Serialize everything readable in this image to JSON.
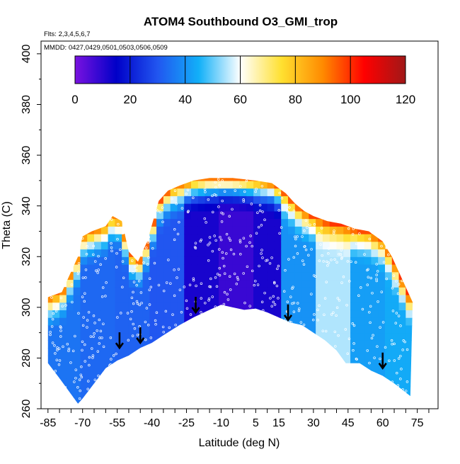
{
  "chart_data": {
    "type": "heatmap",
    "title": "ATOM4 Southbound O3_GMI_trop",
    "annotations": {
      "flights": "Flts: 2,3,4,5,6,7",
      "dates": "MMDD: 0427,0429,0501,0503,0506,0509"
    },
    "xlabel": "Latitude (deg N)",
    "ylabel": "Theta (C)",
    "xlim": [
      -88,
      84
    ],
    "ylim": [
      260,
      405
    ],
    "x_ticks": [
      -85,
      -70,
      -55,
      -40,
      -25,
      -10,
      5,
      15,
      30,
      45,
      60,
      75
    ],
    "y_ticks": [
      260,
      280,
      300,
      320,
      340,
      360,
      380,
      400
    ],
    "colorbar": {
      "min": 0,
      "max": 120,
      "ticks": [
        0,
        20,
        40,
        60,
        80,
        100,
        120
      ],
      "colors": [
        "#7a12e0",
        "#0000c8",
        "#2156f0",
        "#12b0f8",
        "#ffffff",
        "#ffe030",
        "#ff8a00",
        "#ff0000",
        "#a01818"
      ]
    },
    "surface_boundary": [
      [
        -85,
        278
      ],
      [
        -80,
        272
      ],
      [
        -72,
        262
      ],
      [
        -70,
        264
      ],
      [
        -65,
        270
      ],
      [
        -60,
        276
      ],
      [
        -55,
        279
      ],
      [
        -50,
        281
      ],
      [
        -45,
        284
      ],
      [
        -40,
        286
      ],
      [
        -35,
        289
      ],
      [
        -28,
        293
      ],
      [
        -22,
        296
      ],
      [
        -15,
        299
      ],
      [
        -10,
        301
      ],
      [
        -5,
        300
      ],
      [
        0,
        299
      ],
      [
        5,
        299.5
      ],
      [
        10,
        298
      ],
      [
        15,
        296
      ],
      [
        20,
        294
      ],
      [
        25,
        293
      ],
      [
        30,
        290
      ],
      [
        35,
        287
      ],
      [
        40,
        283
      ],
      [
        44,
        278
      ],
      [
        50,
        278
      ],
      [
        55,
        275
      ],
      [
        60,
        273
      ],
      [
        65,
        270
      ],
      [
        72,
        265
      ]
    ],
    "top_boundary": [
      [
        -85,
        304
      ],
      [
        -79,
        306
      ],
      [
        -76,
        312
      ],
      [
        -72,
        320
      ],
      [
        -70,
        328
      ],
      [
        -66,
        330
      ],
      [
        -60,
        332
      ],
      [
        -57,
        336
      ],
      [
        -53,
        334
      ],
      [
        -50,
        322
      ],
      [
        -46,
        318
      ],
      [
        -42,
        326
      ],
      [
        -37,
        342
      ],
      [
        -33,
        346
      ],
      [
        -28,
        348
      ],
      [
        -22,
        350
      ],
      [
        -15,
        351
      ],
      [
        -5,
        351
      ],
      [
        5,
        350
      ],
      [
        12,
        349
      ],
      [
        18,
        345
      ],
      [
        22,
        341
      ],
      [
        26,
        338
      ],
      [
        30,
        336
      ],
      [
        36,
        334
      ],
      [
        42,
        333
      ],
      [
        48,
        331
      ],
      [
        54,
        330
      ],
      [
        60,
        326
      ],
      [
        64,
        320
      ],
      [
        68,
        312
      ],
      [
        71,
        306
      ],
      [
        73,
        302
      ]
    ],
    "field_bands": [
      {
        "x_range": [
          -85,
          -70
        ],
        "value": 35
      },
      {
        "x_range": [
          -70,
          -55
        ],
        "value": 33
      },
      {
        "x_range": [
          -55,
          -40
        ],
        "value": 32
      },
      {
        "x_range": [
          -40,
          -25
        ],
        "value": 30
      },
      {
        "x_range": [
          -25,
          -10
        ],
        "value": 12
      },
      {
        "x_range": [
          -10,
          5
        ],
        "value": 8
      },
      {
        "x_range": [
          5,
          15
        ],
        "value": 12
      },
      {
        "x_range": [
          15,
          30
        ],
        "value": 40
      },
      {
        "x_range": [
          30,
          45
        ],
        "value": 55
      },
      {
        "x_range": [
          45,
          60
        ],
        "value": 42
      },
      {
        "x_range": [
          60,
          73
        ],
        "value": 44
      }
    ],
    "ozone_rich_edge": [
      {
        "x": -84,
        "value": 95
      },
      {
        "x": -58,
        "value": 90
      },
      {
        "x": -40,
        "value": 100
      },
      {
        "x": -30,
        "value": 90
      },
      {
        "x": 20,
        "value": 95
      },
      {
        "x": 40,
        "value": 100
      },
      {
        "x": 60,
        "value": 95
      },
      {
        "x": 70,
        "value": 100
      }
    ],
    "arrows": [
      {
        "lat": -54,
        "theta": 284
      },
      {
        "lat": -45,
        "theta": 286
      },
      {
        "lat": -21,
        "theta": 298
      },
      {
        "lat": 19,
        "theta": 295
      },
      {
        "lat": 60,
        "theta": 276
      }
    ]
  }
}
